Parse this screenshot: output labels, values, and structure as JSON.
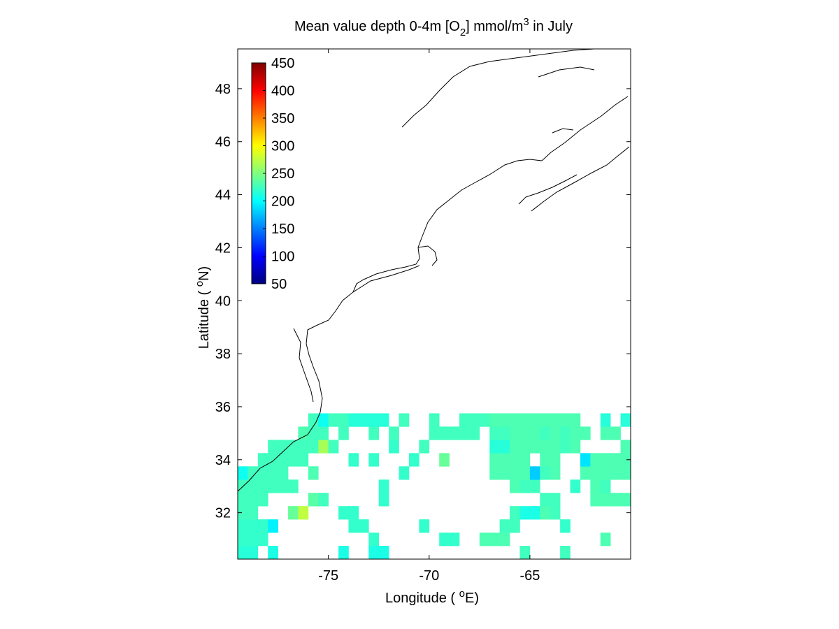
{
  "chart_data": {
    "type": "heatmap",
    "title": {
      "prefix": "Mean value depth 0-4m [O",
      "subscript": "2",
      "middle": "] mmol/m",
      "superscript": "3",
      "suffix": " in July"
    },
    "xlabel": {
      "prefix": "Longitude ( ",
      "superscript": "o",
      "suffix": "E)"
    },
    "ylabel": {
      "prefix": "Latitude ( ",
      "superscript": "o",
      "suffix": "N)"
    },
    "xlim": [
      -79.5,
      -60
    ],
    "ylim": [
      30.25,
      49.5
    ],
    "xticks": [
      -75,
      -70,
      -65
    ],
    "xtick_labels": [
      "-75",
      "-70",
      "-65"
    ],
    "yticks": [
      32,
      34,
      36,
      38,
      40,
      42,
      44,
      46,
      48
    ],
    "ytick_labels": [
      "32",
      "34",
      "36",
      "38",
      "40",
      "42",
      "44",
      "46",
      "48"
    ],
    "grid": false,
    "colorbar": {
      "placement": "top-left inside",
      "range": [
        50,
        450
      ],
      "ticks": [
        50,
        100,
        150,
        200,
        250,
        300,
        350,
        400,
        450
      ],
      "tick_labels": [
        "50",
        "100",
        "150",
        "200",
        "250",
        "300",
        "350",
        "400",
        "450"
      ],
      "colormap": "jet"
    },
    "cell_size_deg": 0.5,
    "cells": [
      [
        -79.25,
        30.5,
        215
      ],
      [
        -78.75,
        30.5,
        215
      ],
      [
        -77.75,
        30.5,
        210
      ],
      [
        -74.25,
        30.5,
        210
      ],
      [
        -72.75,
        30.5,
        210
      ],
      [
        -72.25,
        30.5,
        210
      ],
      [
        -65.25,
        30.5,
        225
      ],
      [
        -63.25,
        30.5,
        225
      ],
      [
        -79.25,
        31.0,
        220
      ],
      [
        -78.75,
        31.0,
        220
      ],
      [
        -78.25,
        31.0,
        220
      ],
      [
        -72.75,
        31.0,
        220
      ],
      [
        -69.25,
        31.0,
        220
      ],
      [
        -68.75,
        31.0,
        220
      ],
      [
        -67.25,
        31.0,
        230
      ],
      [
        -66.75,
        31.0,
        230
      ],
      [
        -66.25,
        31.0,
        230
      ],
      [
        -61.25,
        31.0,
        230
      ],
      [
        -79.25,
        31.5,
        220
      ],
      [
        -78.75,
        31.5,
        220
      ],
      [
        -78.25,
        31.5,
        220
      ],
      [
        -77.75,
        31.5,
        195
      ],
      [
        -73.75,
        31.5,
        220
      ],
      [
        -73.25,
        31.5,
        220
      ],
      [
        -70.25,
        31.5,
        220
      ],
      [
        -66.25,
        31.5,
        225
      ],
      [
        -65.75,
        31.5,
        225
      ],
      [
        -63.25,
        31.5,
        220
      ],
      [
        -79.25,
        32.0,
        225
      ],
      [
        -78.75,
        32.0,
        225
      ],
      [
        -76.75,
        32.0,
        240
      ],
      [
        -76.25,
        32.0,
        275
      ],
      [
        -74.25,
        32.0,
        220
      ],
      [
        -73.75,
        32.0,
        220
      ],
      [
        -65.75,
        32.0,
        225
      ],
      [
        -65.25,
        32.0,
        210
      ],
      [
        -64.75,
        32.0,
        210
      ],
      [
        -64.25,
        32.0,
        230
      ],
      [
        -63.75,
        32.0,
        225
      ],
      [
        -79.25,
        32.5,
        225
      ],
      [
        -78.75,
        32.5,
        225
      ],
      [
        -78.25,
        32.5,
        225
      ],
      [
        -75.75,
        32.5,
        235
      ],
      [
        -75.25,
        32.5,
        225
      ],
      [
        -72.25,
        32.5,
        220
      ],
      [
        -64.25,
        32.5,
        225
      ],
      [
        -63.75,
        32.5,
        225
      ],
      [
        -61.75,
        32.5,
        230
      ],
      [
        -61.25,
        32.5,
        230
      ],
      [
        -60.75,
        32.5,
        230
      ],
      [
        -60.25,
        32.5,
        230
      ],
      [
        -79.25,
        33.0,
        225
      ],
      [
        -78.75,
        33.0,
        225
      ],
      [
        -78.25,
        33.0,
        225
      ],
      [
        -77.75,
        33.0,
        225
      ],
      [
        -77.25,
        33.0,
        225
      ],
      [
        -76.75,
        33.0,
        225
      ],
      [
        -72.25,
        33.0,
        220
      ],
      [
        -65.75,
        33.0,
        230
      ],
      [
        -65.25,
        33.0,
        225
      ],
      [
        -64.75,
        33.0,
        225
      ],
      [
        -62.75,
        33.0,
        220
      ],
      [
        -61.75,
        33.0,
        230
      ],
      [
        -61.25,
        33.0,
        225
      ],
      [
        -79.25,
        33.5,
        205
      ],
      [
        -78.75,
        33.5,
        225
      ],
      [
        -78.25,
        33.5,
        225
      ],
      [
        -77.75,
        33.5,
        225
      ],
      [
        -77.25,
        33.5,
        225
      ],
      [
        -75.75,
        33.5,
        230
      ],
      [
        -71.25,
        33.5,
        220
      ],
      [
        -66.75,
        33.5,
        230
      ],
      [
        -66.25,
        33.5,
        230
      ],
      [
        -65.75,
        33.5,
        230
      ],
      [
        -65.25,
        33.5,
        230
      ],
      [
        -64.75,
        33.5,
        180
      ],
      [
        -64.25,
        33.5,
        225
      ],
      [
        -63.75,
        33.5,
        230
      ],
      [
        -62.25,
        33.5,
        230
      ],
      [
        -61.75,
        33.5,
        230
      ],
      [
        -61.25,
        33.5,
        230
      ],
      [
        -60.75,
        33.5,
        230
      ],
      [
        -60.25,
        33.5,
        230
      ],
      [
        -78.25,
        34.0,
        225
      ],
      [
        -77.75,
        34.0,
        225
      ],
      [
        -77.25,
        34.0,
        225
      ],
      [
        -76.75,
        34.0,
        225
      ],
      [
        -76.25,
        34.0,
        225
      ],
      [
        -73.75,
        34.0,
        220
      ],
      [
        -72.75,
        34.0,
        220
      ],
      [
        -70.75,
        34.0,
        220
      ],
      [
        -69.25,
        34.0,
        240
      ],
      [
        -66.75,
        34.0,
        230
      ],
      [
        -66.25,
        34.0,
        230
      ],
      [
        -65.75,
        34.0,
        230
      ],
      [
        -65.25,
        34.0,
        230
      ],
      [
        -64.25,
        34.0,
        230
      ],
      [
        -63.75,
        34.0,
        230
      ],
      [
        -62.25,
        34.0,
        190
      ],
      [
        -61.75,
        34.0,
        230
      ],
      [
        -61.25,
        34.0,
        230
      ],
      [
        -60.75,
        34.0,
        230
      ],
      [
        -60.25,
        34.0,
        230
      ],
      [
        -77.75,
        34.5,
        225
      ],
      [
        -77.25,
        34.5,
        225
      ],
      [
        -76.75,
        34.5,
        225
      ],
      [
        -76.25,
        34.5,
        225
      ],
      [
        -75.75,
        34.5,
        225
      ],
      [
        -75.25,
        34.5,
        265
      ],
      [
        -74.75,
        34.5,
        225
      ],
      [
        -71.75,
        34.5,
        220
      ],
      [
        -70.25,
        34.5,
        225
      ],
      [
        -66.75,
        34.5,
        215
      ],
      [
        -66.25,
        34.5,
        215
      ],
      [
        -65.75,
        34.5,
        230
      ],
      [
        -65.25,
        34.5,
        230
      ],
      [
        -64.75,
        34.5,
        230
      ],
      [
        -64.25,
        34.5,
        230
      ],
      [
        -63.75,
        34.5,
        230
      ],
      [
        -63.25,
        34.5,
        225
      ],
      [
        -62.75,
        34.5,
        230
      ],
      [
        -60.25,
        34.5,
        230
      ],
      [
        -76.25,
        35.0,
        230
      ],
      [
        -75.75,
        35.0,
        225
      ],
      [
        -75.25,
        35.0,
        225
      ],
      [
        -74.25,
        35.0,
        225
      ],
      [
        -72.75,
        35.0,
        225
      ],
      [
        -71.75,
        35.0,
        225
      ],
      [
        -69.75,
        35.0,
        225
      ],
      [
        -69.25,
        35.0,
        225
      ],
      [
        -68.75,
        35.0,
        225
      ],
      [
        -68.25,
        35.0,
        225
      ],
      [
        -67.75,
        35.0,
        225
      ],
      [
        -66.75,
        35.0,
        225
      ],
      [
        -66.25,
        35.0,
        225
      ],
      [
        -65.75,
        35.0,
        230
      ],
      [
        -65.25,
        35.0,
        230
      ],
      [
        -64.75,
        35.0,
        230
      ],
      [
        -64.25,
        35.0,
        225
      ],
      [
        -63.75,
        35.0,
        230
      ],
      [
        -63.25,
        35.0,
        225
      ],
      [
        -62.75,
        35.0,
        230
      ],
      [
        -62.25,
        35.0,
        230
      ],
      [
        -61.25,
        35.0,
        230
      ],
      [
        -60.75,
        35.0,
        230
      ],
      [
        -75.75,
        35.5,
        225
      ],
      [
        -75.25,
        35.5,
        205
      ],
      [
        -74.75,
        35.5,
        225
      ],
      [
        -74.25,
        35.5,
        225
      ],
      [
        -73.75,
        35.5,
        215
      ],
      [
        -73.25,
        35.5,
        215
      ],
      [
        -72.75,
        35.5,
        215
      ],
      [
        -72.25,
        35.5,
        215
      ],
      [
        -71.25,
        35.5,
        225
      ],
      [
        -69.75,
        35.5,
        225
      ],
      [
        -68.25,
        35.5,
        225
      ],
      [
        -67.75,
        35.5,
        225
      ],
      [
        -67.25,
        35.5,
        225
      ],
      [
        -66.75,
        35.5,
        230
      ],
      [
        -66.25,
        35.5,
        230
      ],
      [
        -65.75,
        35.5,
        230
      ],
      [
        -65.25,
        35.5,
        230
      ],
      [
        -64.75,
        35.5,
        230
      ],
      [
        -64.25,
        35.5,
        230
      ],
      [
        -63.75,
        35.5,
        230
      ],
      [
        -63.25,
        35.5,
        230
      ],
      [
        -62.75,
        35.5,
        230
      ],
      [
        -61.25,
        35.5,
        215
      ],
      [
        -60.25,
        35.5,
        215
      ]
    ]
  }
}
